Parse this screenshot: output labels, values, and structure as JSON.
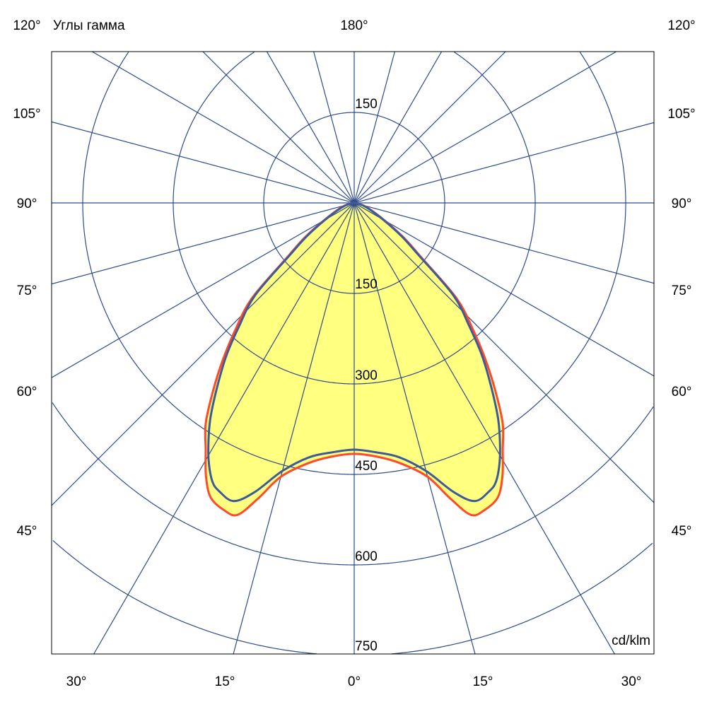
{
  "chart_data": {
    "type": "polar",
    "title": "Углы гамма",
    "unit": "cd/klm",
    "radial_ticks": [
      150,
      300,
      450,
      600,
      750
    ],
    "top_tick": "150",
    "radial_max": 750,
    "angle_step_deg": 15,
    "grid": true,
    "edge_labels": {
      "top": "180°",
      "left": [
        "120°",
        "105°",
        "90°",
        "75°",
        "60°",
        "45°"
      ],
      "right": [
        "120°",
        "105°",
        "90°",
        "75°",
        "60°",
        "45°"
      ],
      "bottom": [
        "30°",
        "15°",
        "0°",
        "15°",
        "30°"
      ]
    },
    "colors": {
      "grid": "#2e4a8c",
      "fill": "#ffff80",
      "series_red": "#ff4a2a",
      "series_blue": "#3d5a9a"
    },
    "symmetric": true,
    "series": [
      {
        "color": "#ff4a2a",
        "gamma": [
          0,
          5,
          10,
          15,
          18,
          20.5,
          23,
          26,
          28.5,
          31,
          34,
          37,
          40,
          43,
          47,
          51,
          55,
          60,
          70,
          80,
          90
        ],
        "values": [
          416,
          422,
          438,
          470,
          515,
          552,
          553,
          543,
          515,
          478,
          440,
          388,
          338,
          290,
          232,
          142,
          100,
          58,
          24,
          8,
          0
        ]
      },
      {
        "color": "#3d5a9a",
        "gamma": [
          0,
          5,
          10,
          15,
          19,
          22,
          25,
          27,
          29.5,
          32,
          34,
          37,
          40,
          43,
          47,
          51,
          55,
          60,
          70,
          80,
          90
        ],
        "values": [
          409,
          415,
          428,
          460,
          507,
          533,
          528,
          518,
          490,
          455,
          425,
          375,
          329,
          280,
          225,
          137,
          95,
          55,
          22,
          7,
          0
        ]
      }
    ]
  }
}
